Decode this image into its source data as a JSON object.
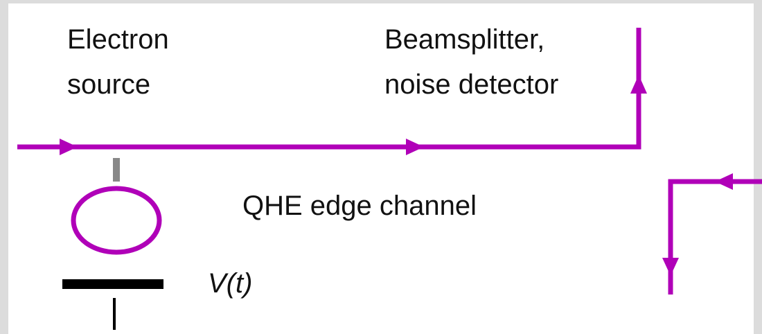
{
  "labels": {
    "electron_source": [
      "Electron",
      "source"
    ],
    "beamsplitter": [
      "Beamsplitter,",
      "noise detector"
    ],
    "edge_channel": "QHE edge channel",
    "voltage": "V(t)"
  }
}
